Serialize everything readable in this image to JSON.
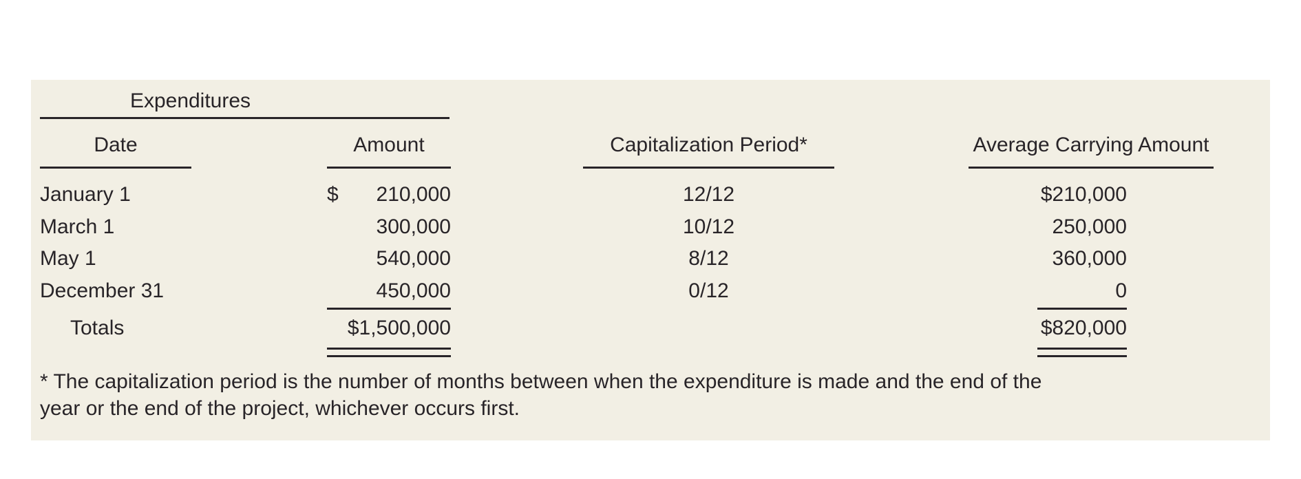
{
  "exhibit": {
    "panel_background": "#f2efe4",
    "text_color": "#282428"
  },
  "table": {
    "group_header": "Expenditures",
    "columns": {
      "date": "Date",
      "amount": "Amount",
      "period": "Capitalization Period*",
      "avg": "Average Carrying Amount"
    },
    "rows": [
      {
        "date": "January 1",
        "currency": "$",
        "amount": "210,000",
        "period": "12/12",
        "avg": "$210,000"
      },
      {
        "date": "March 1",
        "amount": "300,000",
        "period": "10/12",
        "avg": "250,000"
      },
      {
        "date": "May 1",
        "amount": "540,000",
        "period": "8/12",
        "avg": "360,000"
      },
      {
        "date": "December 31",
        "amount": "450,000",
        "period": "0/12",
        "avg": "0"
      }
    ],
    "totals": {
      "label": "Totals",
      "amount": "$1,500,000",
      "avg": "$820,000"
    }
  },
  "footnote": "* The capitalization period is the number of months between when the expenditure is made and the end of the year or the end of the project, whichever occurs first."
}
